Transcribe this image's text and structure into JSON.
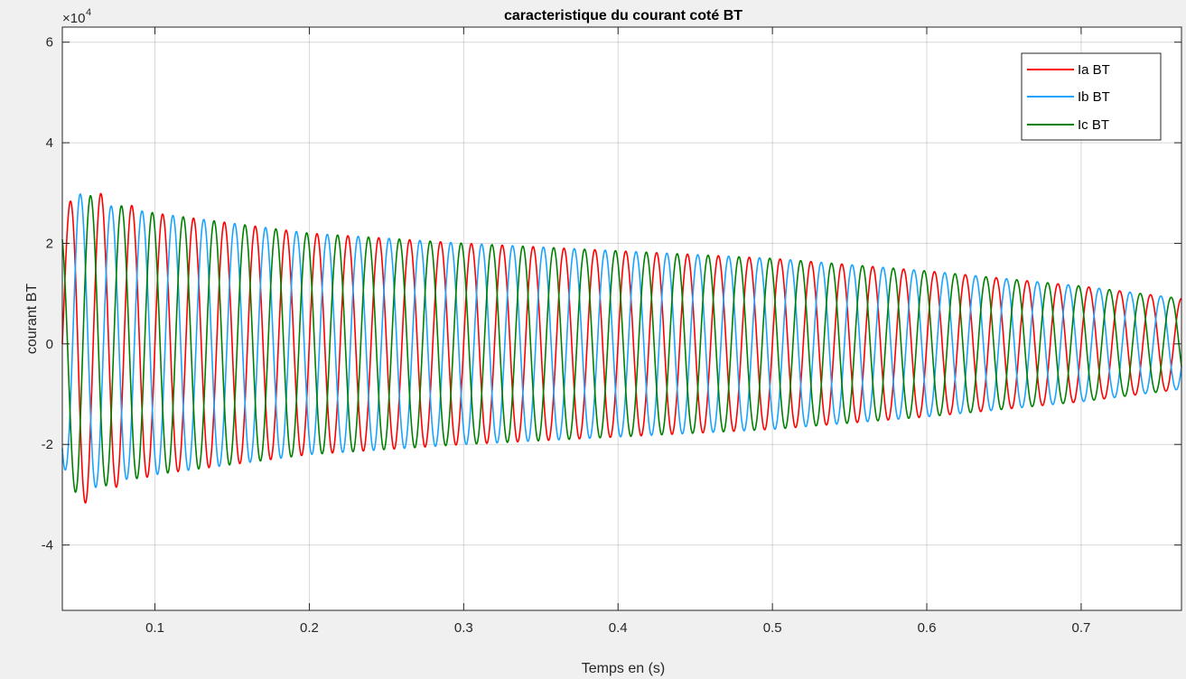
{
  "chart_data": {
    "type": "line",
    "title": "caracteristique du courant coté BT",
    "xlabel": "Temps en (s)",
    "ylabel": "courant BT",
    "y_exponent_label": "×10",
    "y_exponent_power": "4",
    "xlim": [
      0.04,
      0.765
    ],
    "ylim": [
      -5.3,
      6.3
    ],
    "y_scale_factor": 10000,
    "x_ticks": [
      0.1,
      0.2,
      0.3,
      0.4,
      0.5,
      0.6,
      0.7
    ],
    "x_tick_labels": [
      "0.1",
      "0.2",
      "0.3",
      "0.4",
      "0.5",
      "0.6",
      "0.7"
    ],
    "y_ticks": [
      -4,
      -2,
      0,
      2,
      4,
      6
    ],
    "y_tick_labels": [
      "-4",
      "-2",
      "0",
      "2",
      "4",
      "6"
    ],
    "grid": true,
    "legend_position": "top-right",
    "frequency_hz": 50,
    "x_start": 0.04,
    "x_end": 0.765,
    "series": [
      {
        "name": "Ia BT",
        "color": "#ff0000",
        "phase_deg": 0,
        "envelope": [
          [
            0.04,
            2.4
          ],
          [
            0.05,
            3.25
          ],
          [
            0.07,
            2.9
          ],
          [
            0.1,
            2.6
          ],
          [
            0.2,
            2.2
          ],
          [
            0.3,
            2.0
          ],
          [
            0.4,
            1.85
          ],
          [
            0.5,
            1.7
          ],
          [
            0.6,
            1.45
          ],
          [
            0.7,
            1.15
          ],
          [
            0.765,
            0.9
          ]
        ]
      },
      {
        "name": "Ib BT",
        "color": "#1aa3ff",
        "phase_deg": -120,
        "envelope": [
          [
            0.04,
            2.4
          ],
          [
            0.05,
            3.0
          ],
          [
            0.07,
            2.75
          ],
          [
            0.1,
            2.6
          ],
          [
            0.2,
            2.2
          ],
          [
            0.3,
            2.0
          ],
          [
            0.4,
            1.85
          ],
          [
            0.5,
            1.7
          ],
          [
            0.6,
            1.45
          ],
          [
            0.7,
            1.15
          ],
          [
            0.765,
            0.9
          ]
        ]
      },
      {
        "name": "Ic BT",
        "color": "#008000",
        "phase_deg": 120,
        "envelope": [
          [
            0.04,
            2.4
          ],
          [
            0.05,
            3.05
          ],
          [
            0.07,
            2.8
          ],
          [
            0.1,
            2.6
          ],
          [
            0.2,
            2.2
          ],
          [
            0.3,
            2.0
          ],
          [
            0.4,
            1.85
          ],
          [
            0.5,
            1.7
          ],
          [
            0.6,
            1.45
          ],
          [
            0.7,
            1.15
          ],
          [
            0.765,
            0.9
          ]
        ]
      }
    ]
  }
}
